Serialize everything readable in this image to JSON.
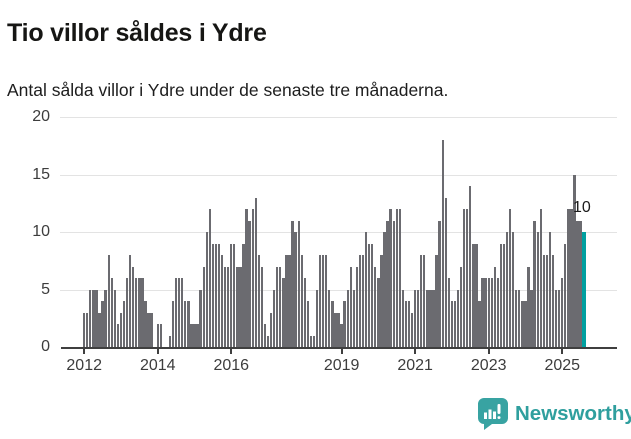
{
  "header": {
    "title": "Tio villor såldes i Ydre",
    "subtitle": "Antal sålda villor i Ydre under de senaste tre månaderna."
  },
  "chart_data": {
    "type": "bar",
    "title": "Tio villor såldes i Ydre",
    "subtitle": "Antal sålda villor i Ydre under de senaste tre månaderna.",
    "frequency": "monthly",
    "x_start": "2012-01",
    "x_end": "2025-08",
    "values": [
      3,
      3,
      5,
      5,
      5,
      3,
      4,
      5,
      8,
      6,
      5,
      2,
      3,
      4,
      6,
      8,
      7,
      6,
      6,
      6,
      4,
      3,
      3,
      0,
      2,
      2,
      0,
      0,
      1,
      4,
      6,
      6,
      6,
      4,
      4,
      2,
      2,
      2,
      5,
      7,
      10,
      12,
      9,
      9,
      9,
      8,
      7,
      7,
      9,
      9,
      7,
      7,
      9,
      12,
      11,
      12,
      13,
      8,
      7,
      2,
      1,
      3,
      5,
      7,
      7,
      6,
      8,
      8,
      11,
      10,
      11,
      8,
      6,
      4,
      1,
      1,
      5,
      8,
      8,
      8,
      5,
      4,
      3,
      3,
      2,
      4,
      5,
      7,
      5,
      7,
      8,
      8,
      10,
      9,
      9,
      7,
      6,
      8,
      10,
      11,
      12,
      11,
      12,
      12,
      5,
      4,
      4,
      3,
      5,
      5,
      8,
      8,
      5,
      5,
      5,
      8,
      11,
      18,
      13,
      6,
      4,
      4,
      5,
      7,
      12,
      12,
      14,
      9,
      9,
      4,
      6,
      6,
      6,
      6,
      7,
      6,
      9,
      9,
      10,
      12,
      10,
      5,
      5,
      4,
      4,
      7,
      5,
      11,
      10,
      12,
      8,
      8,
      10,
      8,
      5,
      5,
      6,
      9,
      12,
      12,
      15,
      11,
      11,
      10
    ],
    "ylim": [
      0,
      20
    ],
    "y_ticks": [
      0,
      5,
      10,
      15,
      20
    ],
    "x_tick_years": [
      2012,
      2014,
      2016,
      2019,
      2021,
      2023,
      2025
    ],
    "x_tick_labels": [
      "2012",
      "2014",
      "2016",
      "2019",
      "2021",
      "2023",
      "2025"
    ],
    "grid": "horizontal",
    "bar_color": "#6b6b70",
    "highlight": {
      "index": 163,
      "value": 10,
      "label": "10",
      "color": "#00a0a0"
    }
  },
  "footer": {
    "brand": "Newsworthy",
    "icon": "newsworthy-chart-bubble-icon",
    "brand_color": "#2f9f9e"
  }
}
